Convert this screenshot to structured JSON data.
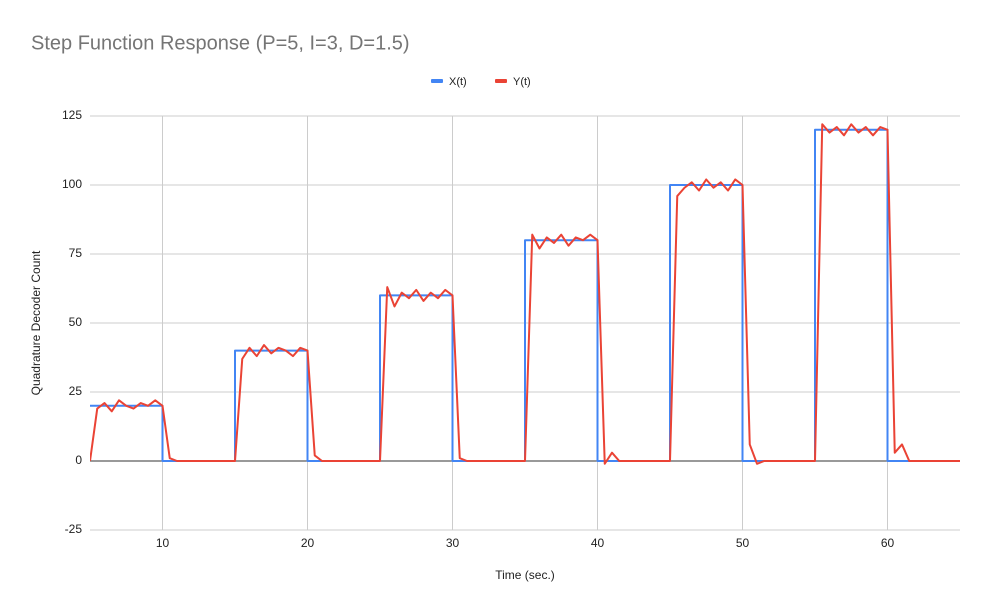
{
  "chart_data": {
    "type": "line",
    "title": "Step Function Response (P=5, I=3, D=1.5)",
    "x_label": "Time (sec.)",
    "y_label": "Quadrature Decoder Count",
    "x": [
      5,
      5.5,
      6,
      6.5,
      7,
      7.5,
      8,
      8.5,
      9,
      9.5,
      10,
      10,
      10.5,
      11,
      11.5,
      12,
      12.5,
      13,
      13.5,
      14,
      14.5,
      15,
      15,
      15.5,
      16,
      16.5,
      17,
      17.5,
      18,
      18.5,
      19,
      19.5,
      20,
      20,
      20.5,
      21,
      21.5,
      22,
      22.5,
      23,
      23.5,
      24,
      24.5,
      25,
      25,
      25.5,
      26,
      26.5,
      27,
      27.5,
      28,
      28.5,
      29,
      29.5,
      30,
      30,
      30.5,
      31,
      31.5,
      32,
      32.5,
      33,
      33.5,
      34,
      34.5,
      35,
      35,
      35.5,
      36,
      36.5,
      37,
      37.5,
      38,
      38.5,
      39,
      39.5,
      40,
      40,
      40.5,
      41,
      41.5,
      42,
      42.5,
      43,
      43.5,
      44,
      44.5,
      45,
      45,
      45.5,
      46,
      46.5,
      47,
      47.5,
      48,
      48.5,
      49,
      49.5,
      50,
      50,
      50.5,
      51,
      51.5,
      52,
      52.5,
      53,
      53.5,
      54,
      54.5,
      55,
      55,
      55.5,
      56,
      56.5,
      57,
      57.5,
      58,
      58.5,
      59,
      59.5,
      60,
      60,
      60.5,
      61,
      61.5,
      62,
      62.5,
      63,
      63.5,
      64,
      64.5,
      65
    ],
    "series": [
      {
        "name": "X(t)",
        "color": "#4285f4",
        "values": [
          20,
          20,
          20,
          20,
          20,
          20,
          20,
          20,
          20,
          20,
          20,
          0,
          0,
          0,
          0,
          0,
          0,
          0,
          0,
          0,
          0,
          0,
          40,
          40,
          40,
          40,
          40,
          40,
          40,
          40,
          40,
          40,
          40,
          0,
          0,
          0,
          0,
          0,
          0,
          0,
          0,
          0,
          0,
          0,
          60,
          60,
          60,
          60,
          60,
          60,
          60,
          60,
          60,
          60,
          60,
          0,
          0,
          0,
          0,
          0,
          0,
          0,
          0,
          0,
          0,
          0,
          80,
          80,
          80,
          80,
          80,
          80,
          80,
          80,
          80,
          80,
          80,
          0,
          0,
          0,
          0,
          0,
          0,
          0,
          0,
          0,
          0,
          0,
          100,
          100,
          100,
          100,
          100,
          100,
          100,
          100,
          100,
          100,
          100,
          0,
          0,
          0,
          0,
          0,
          0,
          0,
          0,
          0,
          0,
          0,
          120,
          120,
          120,
          120,
          120,
          120,
          120,
          120,
          120,
          120,
          120,
          0,
          0,
          0,
          0,
          0,
          0,
          0,
          0,
          0,
          0,
          0
        ]
      },
      {
        "name": "Y(t)",
        "color": "#ea4335",
        "values": [
          0,
          19,
          21,
          18,
          22,
          20,
          19,
          21,
          20,
          22,
          20,
          20,
          1,
          0,
          0,
          0,
          0,
          0,
          0,
          0,
          0,
          0,
          0,
          37,
          41,
          38,
          42,
          39,
          41,
          40,
          38,
          41,
          40,
          40,
          2,
          0,
          0,
          0,
          0,
          0,
          0,
          0,
          0,
          0,
          0,
          63,
          56,
          61,
          59,
          62,
          58,
          61,
          59,
          62,
          60,
          60,
          1,
          0,
          0,
          0,
          0,
          0,
          0,
          0,
          0,
          0,
          0,
          82,
          77,
          81,
          79,
          82,
          78,
          81,
          80,
          82,
          80,
          80,
          -1,
          3,
          0,
          0,
          0,
          0,
          0,
          0,
          0,
          0,
          0,
          96,
          99,
          101,
          98,
          102,
          99,
          101,
          98,
          102,
          100,
          100,
          6,
          -1,
          0,
          0,
          0,
          0,
          0,
          0,
          0,
          0,
          0,
          122,
          119,
          121,
          118,
          122,
          119,
          121,
          118,
          121,
          120,
          120,
          3,
          6,
          0,
          0,
          0,
          0,
          0,
          0,
          0,
          0
        ]
      }
    ],
    "xlim": [
      5,
      65
    ],
    "xticks": [
      10,
      20,
      30,
      40,
      50,
      60
    ],
    "ylim": [
      -25,
      125
    ],
    "yticks": [
      -25,
      0,
      25,
      50,
      75,
      100,
      125
    ],
    "grid": true,
    "legend": "top"
  }
}
